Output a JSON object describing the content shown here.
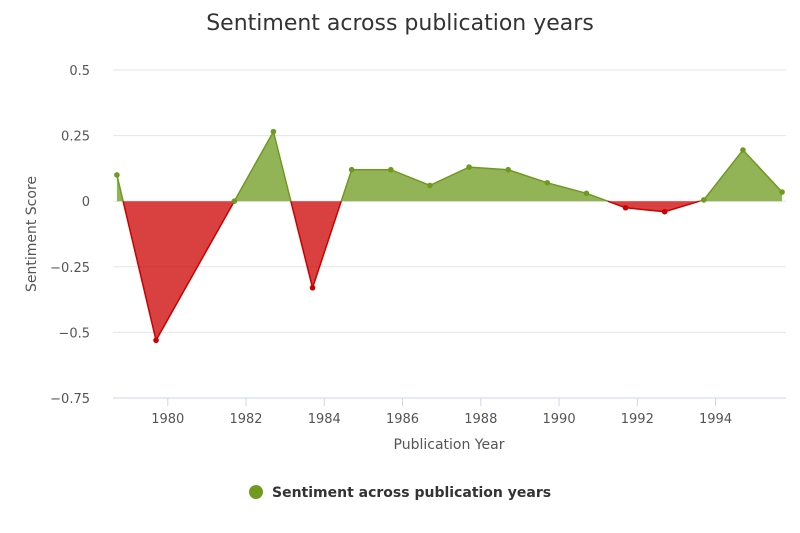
{
  "chart_data": {
    "type": "area",
    "title": "Sentiment across publication years",
    "xlabel": "Publication Year",
    "ylabel": "Sentiment Score",
    "xlim": [
      1978.6,
      1995.8
    ],
    "ylim": [
      -0.75,
      0.5
    ],
    "x_ticks": [
      1980,
      1982,
      1984,
      1986,
      1988,
      1990,
      1992,
      1994
    ],
    "y_ticks": [
      0.5,
      0.25,
      0,
      -0.25,
      -0.5,
      -0.75
    ],
    "y_tick_labels": [
      "0.5",
      "0.25",
      "0",
      "−0.25",
      "−0.5",
      "−0.75"
    ],
    "grid": true,
    "legend_position": "bottom-center",
    "negative_color": "#cc0000",
    "series": [
      {
        "name": "Sentiment across publication years",
        "color": "#6f9a1f",
        "points": [
          {
            "x": 1978.7,
            "y": 0.1
          },
          {
            "x": 1979.7,
            "y": -0.53
          },
          {
            "x": 1981.7,
            "y": 0.0
          },
          {
            "x": 1982.7,
            "y": 0.265
          },
          {
            "x": 1983.7,
            "y": -0.33
          },
          {
            "x": 1984.7,
            "y": 0.12
          },
          {
            "x": 1985.7,
            "y": 0.12
          },
          {
            "x": 1986.7,
            "y": 0.06
          },
          {
            "x": 1987.7,
            "y": 0.13
          },
          {
            "x": 1988.7,
            "y": 0.12
          },
          {
            "x": 1989.7,
            "y": 0.07
          },
          {
            "x": 1990.7,
            "y": 0.03
          },
          {
            "x": 1991.7,
            "y": -0.025
          },
          {
            "x": 1992.7,
            "y": -0.04
          },
          {
            "x": 1993.7,
            "y": 0.005
          },
          {
            "x": 1994.7,
            "y": 0.195
          },
          {
            "x": 1995.7,
            "y": 0.035
          }
        ]
      }
    ]
  }
}
